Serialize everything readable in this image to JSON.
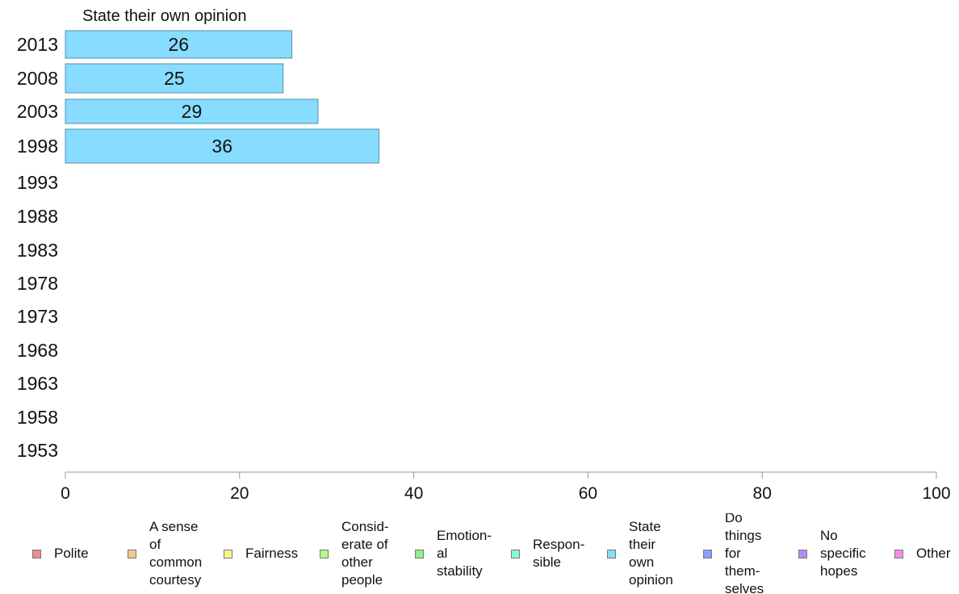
{
  "chart_data": {
    "type": "bar",
    "orientation": "horizontal",
    "title": "State their own opinion",
    "categories": [
      "2013",
      "2008",
      "2003",
      "1998",
      "1993",
      "1988",
      "1983",
      "1978",
      "1973",
      "1968",
      "1963",
      "1958",
      "1953"
    ],
    "series": [
      {
        "name": "State their own opinion",
        "values": [
          26,
          25,
          29,
          36,
          null,
          null,
          null,
          null,
          null,
          null,
          null,
          null,
          null
        ],
        "color": "#87dcff"
      }
    ],
    "data_labels": [
      "26",
      "25",
      "29",
      "36"
    ],
    "xlim": [
      0,
      100
    ],
    "xticks": [
      "0",
      "20",
      "40",
      "60",
      "80",
      "100"
    ],
    "xticks_values": [
      0,
      20,
      40,
      60,
      80,
      100
    ],
    "grid": false,
    "legend_position": "bottom",
    "legend": [
      {
        "label": "Polite",
        "color": "#f08c8c"
      },
      {
        "label": "A sense\nof\ncommon\ncourtesy",
        "color": "#f5c88c"
      },
      {
        "label": "Fairness",
        "color": "#f5f58c"
      },
      {
        "label": "Consid-\nerate of\nother\npeople",
        "color": "#b9f58c"
      },
      {
        "label": "Emotion-\nal\nstability",
        "color": "#8cf08c"
      },
      {
        "label": "Respon-\nsible",
        "color": "#8cf5dc"
      },
      {
        "label": "State\ntheir\nown\nopinion",
        "color": "#87dcff"
      },
      {
        "label": "Do\nthings\nfor\nthem-\nselves",
        "color": "#8ca0f5"
      },
      {
        "label": "No\nspecific\nhopes",
        "color": "#b48cf5"
      },
      {
        "label": "Other",
        "color": "#f58cf0"
      }
    ]
  }
}
